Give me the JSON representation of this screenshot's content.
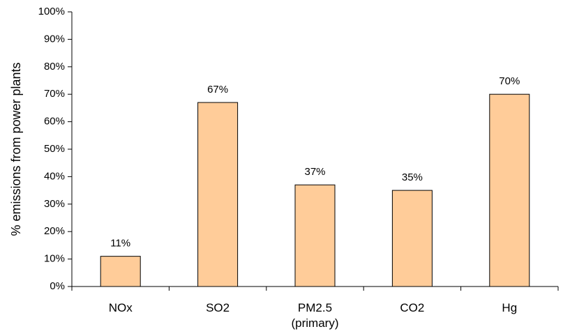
{
  "chart_data": {
    "type": "bar",
    "title": "",
    "xlabel": "",
    "ylabel": "% emissions from power plants",
    "categories": [
      "NOx",
      "SO2",
      "PM2.5\n(primary)",
      "CO2",
      "Hg"
    ],
    "values": [
      11,
      67,
      37,
      35,
      70
    ],
    "value_labels": [
      "11%",
      "67%",
      "37%",
      "35%",
      "70%"
    ],
    "ylim": [
      0,
      100
    ],
    "yticks": [
      0,
      10,
      20,
      30,
      40,
      50,
      60,
      70,
      80,
      90,
      100
    ],
    "ytick_labels": [
      "0%",
      "10%",
      "20%",
      "30%",
      "40%",
      "50%",
      "60%",
      "70%",
      "80%",
      "90%",
      "100%"
    ],
    "grid": false,
    "legend": "none",
    "colors": {
      "bar_fill": "#FFCC99",
      "bar_stroke": "#000000",
      "axis": "#000000",
      "background": "#FFFFFF"
    }
  }
}
